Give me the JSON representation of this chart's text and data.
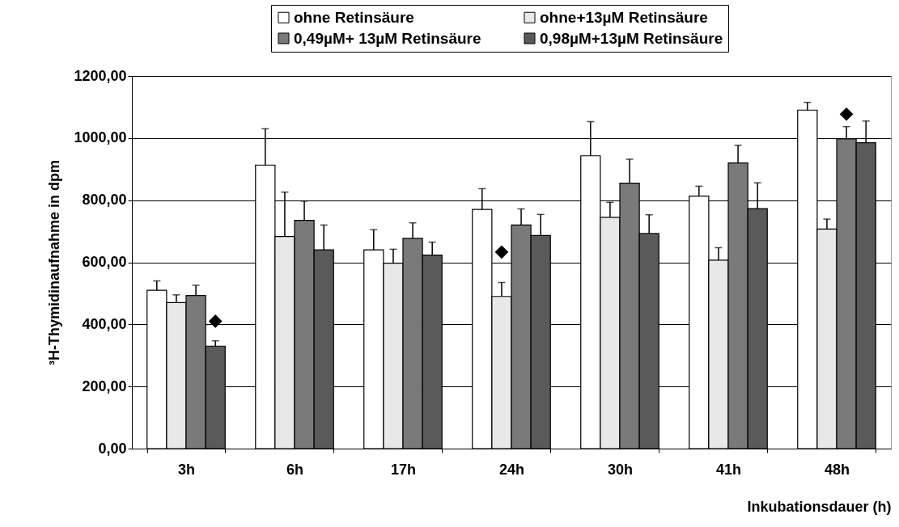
{
  "chart_data": {
    "type": "bar",
    "categories": [
      "3h",
      "6h",
      "17h",
      "24h",
      "30h",
      "41h",
      "48h"
    ],
    "xlabel": "Inkubationsdauer (h)",
    "ylabel": "³H-Thymidinaufnahme in dpm",
    "ylim": [
      0,
      1200
    ],
    "yticks": [
      {
        "value": 0,
        "label": "0,00"
      },
      {
        "value": 200,
        "label": "200,00"
      },
      {
        "value": 400,
        "label": "400,00"
      },
      {
        "value": 600,
        "label": "600,00"
      },
      {
        "value": 800,
        "label": "800,00"
      },
      {
        "value": 1000,
        "label": "1000,00"
      },
      {
        "value": 1200,
        "label": "1200,00"
      }
    ],
    "grid": "y",
    "legend": "top right",
    "series": [
      {
        "name": "ohne Retinsäure",
        "color": "#ffffff",
        "values": [
          510,
          913,
          640,
          770,
          943,
          813,
          1090
        ],
        "errors": [
          [
            510,
            540
          ],
          [
            913,
            1030
          ],
          [
            640,
            705
          ],
          [
            770,
            837
          ],
          [
            943,
            1053
          ],
          [
            813,
            845
          ],
          [
            1090,
            1115
          ]
        ]
      },
      {
        "name": "ohne+13µM Retinsäure",
        "color": "#e8e8e8",
        "values": [
          470,
          683,
          597,
          490,
          745,
          607,
          707
        ],
        "errors": [
          [
            470,
            495
          ],
          [
            683,
            826
          ],
          [
            597,
            642
          ],
          [
            490,
            535
          ],
          [
            745,
            793
          ],
          [
            607,
            647
          ],
          [
            707,
            739
          ]
        ]
      },
      {
        "name": "0,49µM+ 13µM Retinsäure",
        "color": "#7a7a7a",
        "values": [
          493,
          735,
          677,
          720,
          855,
          920,
          997
        ],
        "errors": [
          [
            493,
            526
          ],
          [
            735,
            797
          ],
          [
            677,
            727
          ],
          [
            720,
            772
          ],
          [
            855,
            932
          ],
          [
            920,
            977
          ],
          [
            997,
            1037
          ]
        ]
      },
      {
        "name": "0,98µM+13µM Retinsäure",
        "color": "#5a5a5a",
        "values": [
          330,
          640,
          623,
          686,
          693,
          773,
          985
        ],
        "errors": [
          [
            330,
            347
          ],
          [
            640,
            720
          ],
          [
            623,
            665
          ],
          [
            686,
            754
          ],
          [
            693,
            753
          ],
          [
            773,
            856
          ],
          [
            985,
            1055
          ]
        ]
      },
      {
        "type": "scatter",
        "color": "#000000",
        "marker": "diamond",
        "x": [
          "3h",
          "24h",
          "48h"
        ],
        "values": [
          410,
          633,
          1077
        ]
      }
    ]
  }
}
